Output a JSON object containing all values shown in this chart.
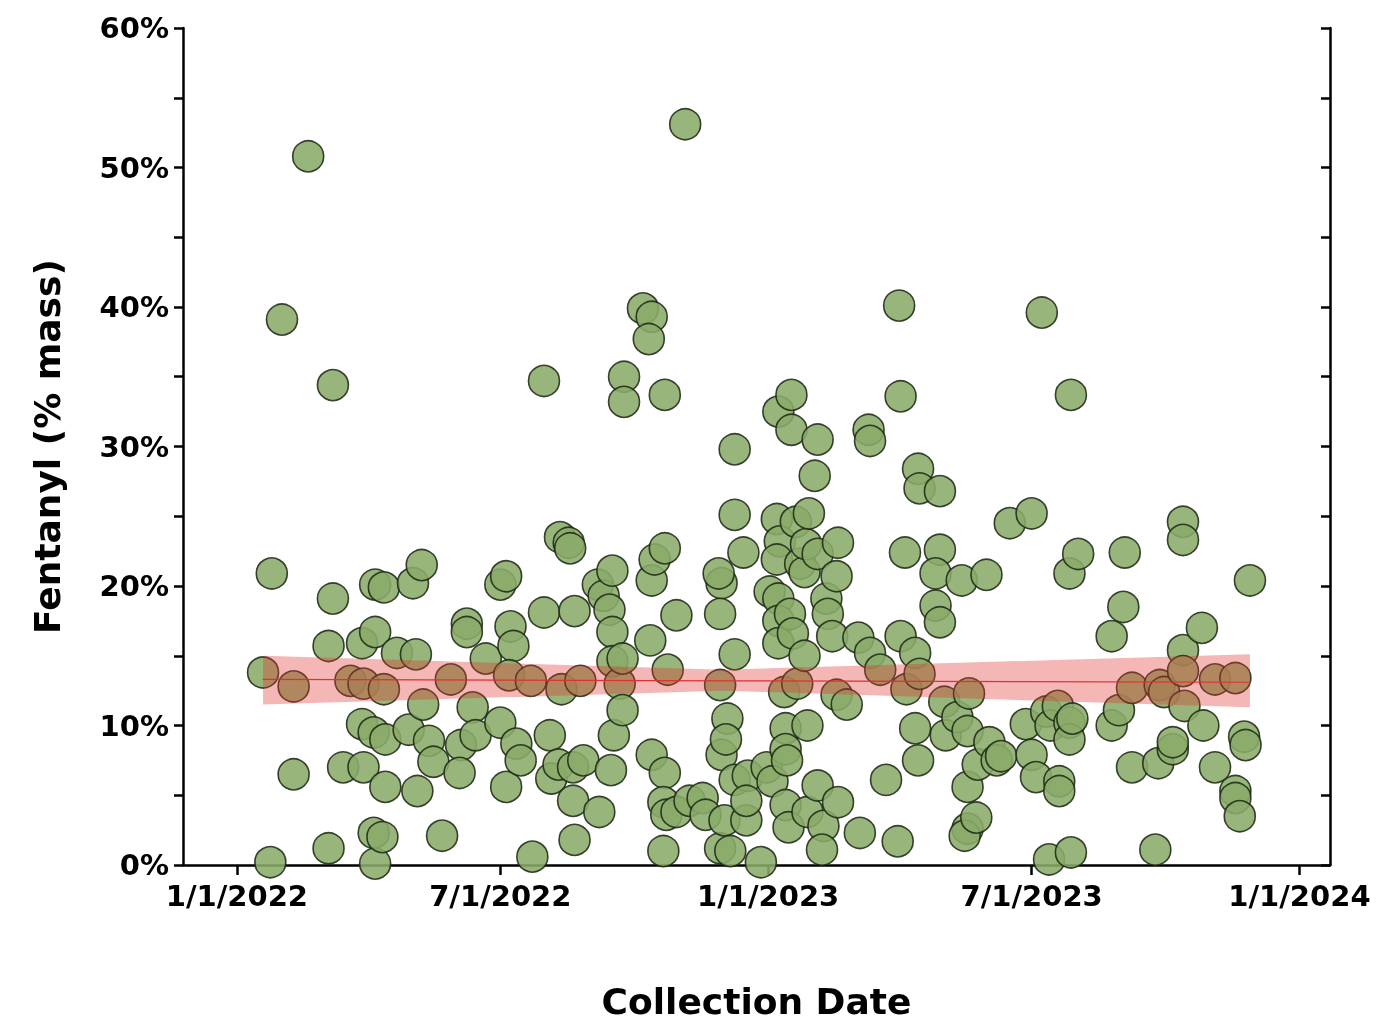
{
  "chart_data": {
    "type": "scatter",
    "xlabel": "Collection Date",
    "ylabel": "Fentanyl (% mass)",
    "grid": false,
    "marker": "circle",
    "xlim": [
      "2021-11-25",
      "2024-01-22"
    ],
    "xticks": [
      {
        "value": "2022-01-01",
        "label": "1/1/2022"
      },
      {
        "value": "2022-07-01",
        "label": "7/1/2022"
      },
      {
        "value": "2023-01-01",
        "label": "1/1/2023"
      },
      {
        "value": "2023-07-01",
        "label": "7/1/2023"
      },
      {
        "value": "2024-01-01",
        "label": "1/1/2024"
      }
    ],
    "ylim": [
      0,
      60
    ],
    "yticks": [
      {
        "value": 0,
        "label": "0%"
      },
      {
        "value": 5,
        "label": null
      },
      {
        "value": 10,
        "label": "10%"
      },
      {
        "value": 15,
        "label": null
      },
      {
        "value": 20,
        "label": "20%"
      },
      {
        "value": 25,
        "label": null
      },
      {
        "value": 30,
        "label": "30%"
      },
      {
        "value": 35,
        "label": null
      },
      {
        "value": 40,
        "label": "40%"
      },
      {
        "value": 45,
        "label": null
      },
      {
        "value": 50,
        "label": "50%"
      },
      {
        "value": 55,
        "label": null
      },
      {
        "value": 60,
        "label": "60%"
      }
    ],
    "series": [
      {
        "type": "scatter",
        "color": "#8aab6a",
        "x": [
          "2022-01-19",
          "2022-01-25",
          "2022-02-01",
          "2022-02-09",
          "2022-02-09",
          "2022-01-24",
          "2022-02-19",
          "2022-03-08",
          "2022-03-08",
          "2022-03-05",
          "2022-03-05",
          "2022-03-15",
          "2022-03-20",
          "2022-03-28",
          "2022-03-28",
          "2022-03-29",
          "2022-03-29",
          "2022-04-06",
          "2022-04-06",
          "2022-04-05",
          "2022-04-05",
          "2022-04-06",
          "2022-04-12",
          "2022-04-12",
          "2022-04-13",
          "2022-04-13",
          "2022-04-11",
          "2022-04-21",
          "2022-05-02",
          "2022-05-04",
          "2022-05-08",
          "2022-05-05",
          "2022-04-29",
          "2022-05-09",
          "2022-05-13",
          "2022-05-16",
          "2022-05-22",
          "2022-05-28",
          "2022-06-04",
          "2022-06-08",
          "2022-06-08",
          "2022-06-12",
          "2022-06-14",
          "2022-06-03",
          "2022-06-21",
          "2022-07-01",
          "2022-07-05",
          "2022-07-01",
          "2022-07-05",
          "2022-07-08",
          "2022-07-10",
          "2022-07-07",
          "2022-07-12",
          "2022-07-15",
          "2022-07-22",
          "2022-07-23",
          "2022-07-31",
          "2022-07-31",
          "2022-08-04",
          "2022-08-05",
          "2022-08-11",
          "2022-08-17",
          "2022-08-18",
          "2022-08-12",
          "2022-08-10",
          "2022-08-21",
          "2022-08-21",
          "2022-08-20",
          "2022-08-20",
          "2022-08-25",
          "2022-08-27",
          "2022-09-06",
          "2022-09-07",
          "2022-09-10",
          "2022-09-14",
          "2022-09-16",
          "2022-09-16",
          "2022-09-17",
          "2022-09-15",
          "2022-09-16",
          "2022-09-21",
          "2022-09-24",
          "2022-09-24",
          "2022-09-23",
          "2022-09-23",
          "2022-10-07",
          "2022-10-13",
          "2022-10-11",
          "2022-10-13",
          "2022-10-15",
          "2022-10-22",
          "2022-10-13",
          "2022-10-22",
          "2022-10-22",
          "2022-10-12",
          "2022-10-24",
          "2022-10-21",
          "2022-10-30",
          "2022-11-05",
          "2022-10-21",
          "2022-10-23",
          "2022-10-30",
          "2022-11-08",
          "2022-11-17",
          "2022-11-19",
          "2022-11-30",
          "2022-11-29",
          "2022-11-28",
          "2022-11-29",
          "2022-11-30",
          "2022-11-29",
          "2022-12-02",
          "2022-12-04",
          "2022-12-03",
          "2022-12-06",
          "2022-12-09",
          "2022-12-09",
          "2022-12-09",
          "2022-12-15",
          "2022-12-09",
          "2022-12-17",
          "2022-12-18",
          "2022-12-17",
          "2022-12-27",
          "2022-12-31",
          "2023-01-02",
          "2023-01-04",
          "2023-01-08",
          "2023-01-07",
          "2023-01-09",
          "2023-01-07",
          "2023-01-08",
          "2023-01-08",
          "2023-01-08",
          "2023-01-12",
          "2023-01-13",
          "2023-01-13",
          "2023-01-14",
          "2023-01-13",
          "2023-01-15",
          "2023-01-16",
          "2023-01-17",
          "2023-01-17",
          "2023-01-18",
          "2023-01-20",
          "2023-01-21",
          "2023-01-23",
          "2023-01-26",
          "2023-01-27",
          "2023-01-29",
          "2023-01-26",
          "2023-01-28",
          "2023-01-28",
          "2023-02-02",
          "2023-02-04",
          "2023-02-04",
          "2023-02-04",
          "2023-02-08",
          "2023-02-10",
          "2023-02-11",
          "2023-02-14",
          "2023-02-17",
          "2023-02-18",
          "2023-02-07",
          "2023-02-18",
          "2023-02-17",
          "2023-02-24",
          "2023-03-04",
          "2023-03-05",
          "2023-03-11",
          "2023-03-12",
          "2023-03-12",
          "2023-03-19",
          "2023-03-23",
          "2023-04-01",
          "2023-04-02",
          "2023-04-02",
          "2023-03-31",
          "2023-04-05",
          "2023-04-06",
          "2023-04-12",
          "2023-04-14",
          "2023-04-15",
          "2023-04-15",
          "2023-04-12",
          "2023-04-14",
          "2023-04-29",
          "2023-04-29",
          "2023-04-26",
          "2023-04-26",
          "2023-04-29",
          "2023-05-02",
          "2023-05-03",
          "2023-05-11",
          "2023-05-14",
          "2023-05-18",
          "2023-05-19",
          "2023-05-18",
          "2023-05-18",
          "2023-05-16",
          "2023-05-24",
          "2023-05-25",
          "2023-05-31",
          "2023-06-02",
          "2023-06-07",
          "2023-06-10",
          "2023-06-16",
          "2023-06-27",
          "2023-07-01",
          "2023-07-08",
          "2023-07-01",
          "2023-07-04",
          "2023-07-11",
          "2023-07-14",
          "2023-07-13",
          "2023-07-19",
          "2023-07-20",
          "2023-07-20",
          "2023-07-28",
          "2023-07-27",
          "2023-08-02",
          "2023-07-28",
          "2023-07-27",
          "2023-07-27",
          "2023-07-29",
          "2023-08-25",
          "2023-08-25",
          "2023-08-30",
          "2023-09-03",
          "2023-09-02",
          "2023-09-08",
          "2023-09-08",
          "2023-09-24",
          "2023-09-26",
          "2023-09-27",
          "2023-09-30",
          "2023-10-06",
          "2023-10-06",
          "2023-10-13",
          "2023-10-13",
          "2023-10-13",
          "2023-10-13",
          "2023-10-14",
          "2023-10-26",
          "2023-10-27",
          "2023-11-04",
          "2023-11-04",
          "2023-11-18",
          "2023-11-18",
          "2023-11-18",
          "2023-11-21",
          "2023-11-24",
          "2023-11-25",
          "2023-11-28"
        ],
        "values": [
          13.8,
          20.9,
          39.1,
          12.8,
          6.5,
          0.2,
          50.8,
          34.4,
          19.1,
          15.7,
          1.2,
          7.0,
          13.2,
          15.9,
          10.1,
          7.0,
          13.0,
          20.1,
          16.7,
          9.5,
          2.3,
          0.1,
          19.9,
          12.6,
          9.0,
          5.6,
          2.0,
          15.2,
          20.2,
          15.1,
          21.5,
          5.3,
          9.7,
          11.5,
          8.9,
          7.4,
          2.1,
          13.3,
          8.6,
          17.3,
          16.7,
          11.3,
          9.3,
          6.6,
          14.8,
          20.1,
          20.7,
          10.2,
          5.6,
          17.1,
          15.7,
          13.6,
          8.7,
          7.5,
          13.2,
          0.6,
          34.7,
          18.1,
          9.3,
          6.2,
          23.5,
          23.1,
          22.7,
          12.6,
          7.2,
          18.2,
          1.8,
          7.0,
          4.6,
          13.2,
          7.5,
          20.1,
          3.8,
          19.3,
          18.3,
          16.7,
          14.6,
          9.3,
          6.8,
          21.1,
          13.0,
          35.0,
          33.2,
          14.8,
          11.1,
          39.9,
          39.3,
          37.7,
          20.4,
          21.9,
          22.7,
          7.9,
          6.6,
          33.7,
          16.1,
          14.0,
          1.0,
          17.9,
          53.1,
          4.5,
          3.6,
          3.8,
          4.6,
          4.8,
          3.6,
          20.2,
          18.0,
          20.9,
          12.9,
          7.9,
          1.2,
          3.2,
          10.5,
          9.0,
          1.0,
          29.8,
          25.1,
          15.1,
          22.4,
          6.1,
          3.2,
          6.4,
          4.6,
          0.2,
          7.0,
          19.6,
          6.0,
          32.5,
          24.8,
          23.2,
          21.9,
          19.1,
          17.5,
          15.9,
          12.4,
          9.8,
          8.3,
          7.5,
          4.3,
          2.7,
          18.0,
          33.7,
          31.2,
          16.6,
          24.6,
          13.0,
          21.6,
          21.0,
          23.0,
          25.2,
          15.0,
          3.8,
          10.0,
          27.9,
          30.5,
          22.3,
          5.7,
          2.8,
          19.1,
          18.0,
          16.4,
          20.7,
          23.1,
          1.1,
          4.5,
          12.2,
          11.5,
          16.3,
          2.3,
          31.2,
          30.4,
          15.2,
          14.0,
          6.1,
          40.1,
          33.6,
          16.4,
          1.7,
          22.4,
          12.6,
          15.2,
          28.4,
          27.0,
          13.7,
          9.8,
          7.5,
          26.8,
          22.6,
          20.9,
          18.6,
          17.4,
          11.7,
          9.3,
          10.6,
          20.4,
          9.6,
          12.3,
          5.6,
          2.6,
          2.1,
          3.4,
          7.2,
          20.8,
          8.8,
          7.5,
          7.8,
          24.5,
          10.1,
          25.2,
          39.6,
          7.9,
          6.3,
          11.0,
          10.0,
          0.4,
          11.4,
          6.0,
          5.3,
          33.7,
          20.9,
          22.3,
          0.9,
          10.2,
          9.0,
          10.5,
          16.4,
          10.0,
          11.1,
          22.4,
          18.5,
          12.7,
          7.0,
          1.1,
          7.3,
          12.9,
          12.4,
          8.3,
          8.8,
          24.6,
          23.3,
          15.4,
          13.9,
          11.4,
          17.0,
          10.0,
          7.0,
          13.3,
          13.4,
          5.3,
          4.8,
          3.5,
          9.2,
          8.6,
          20.4
        ]
      },
      {
        "type": "line",
        "color": "#e0302f",
        "marker": "none",
        "x": [
          "2022-01-19",
          "2022-12-01",
          "2023-11-28"
        ],
        "values": [
          13.3,
          13.2,
          13.1
        ],
        "lower": [
          11.5,
          12.5,
          11.3
        ],
        "upper": [
          15.0,
          14.0,
          15.1
        ]
      }
    ]
  }
}
